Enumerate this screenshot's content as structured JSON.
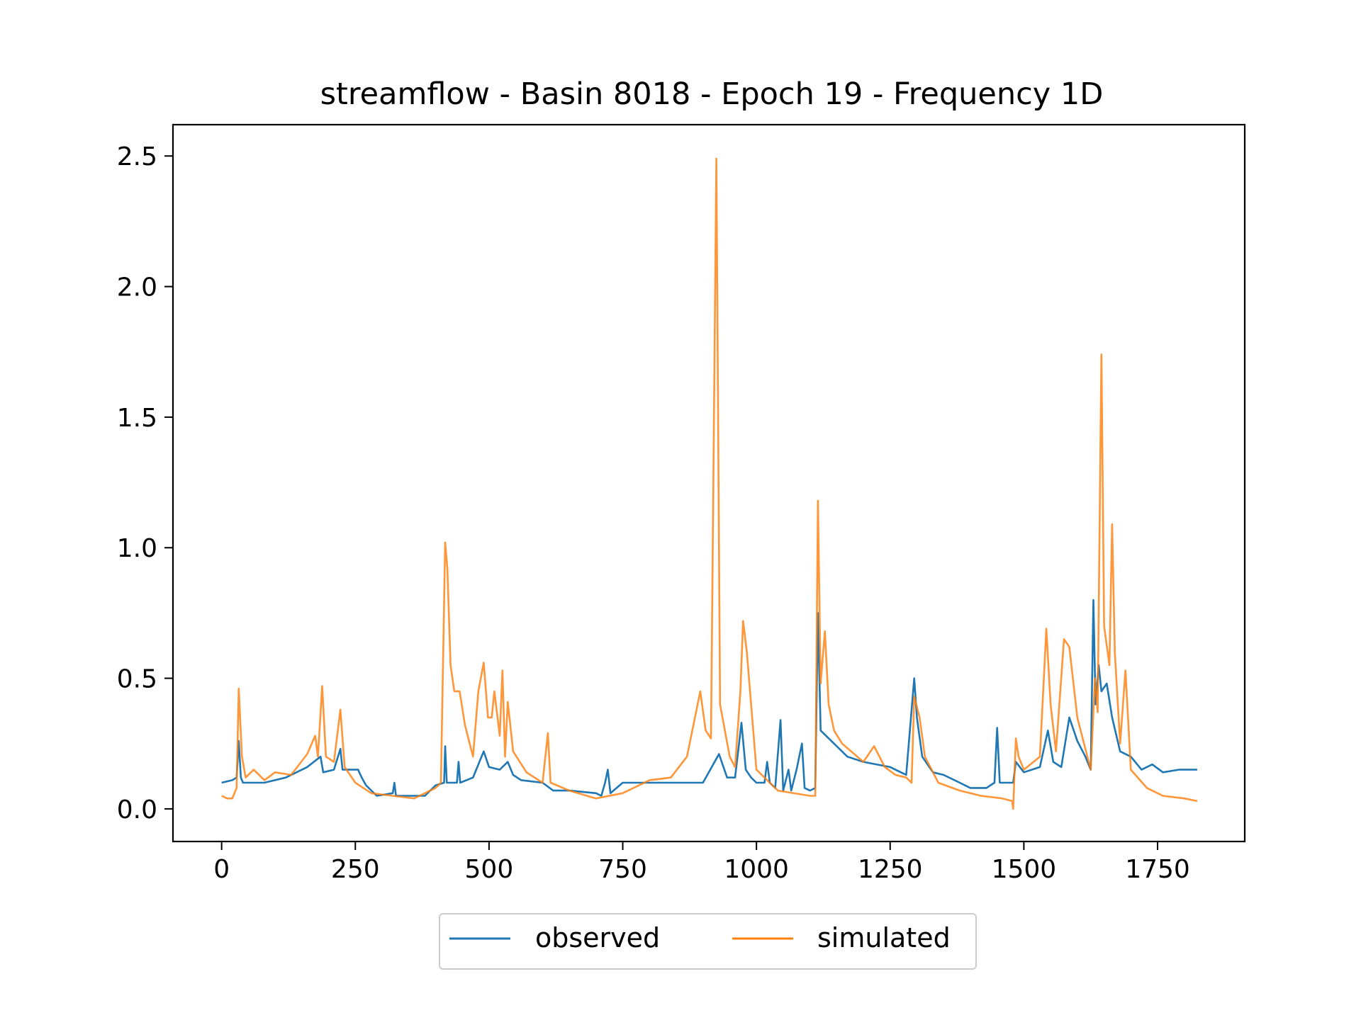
{
  "chart_data": {
    "type": "line",
    "title": "streamflow - Basin 8018 - Epoch 19 - Frequency 1D",
    "xlabel": "",
    "ylabel": "",
    "xlim": [
      -91,
      1913
    ],
    "ylim": [
      -0.125,
      2.62
    ],
    "x_ticks": [
      0,
      250,
      500,
      750,
      1000,
      1250,
      1500,
      1750
    ],
    "x_tick_labels": [
      "0",
      "250",
      "500",
      "750",
      "1000",
      "1250",
      "1500",
      "1750"
    ],
    "y_ticks": [
      0.0,
      0.5,
      1.0,
      1.5,
      2.0,
      2.5
    ],
    "y_tick_labels": [
      "0.0",
      "0.5",
      "1.0",
      "1.5",
      "2.0",
      "2.5"
    ],
    "grid": false,
    "legend_position": "bottom-center-outside",
    "series": [
      {
        "name": "observed",
        "color": "#1f77b4",
        "points": [
          [
            0,
            0.1
          ],
          [
            20,
            0.11
          ],
          [
            28,
            0.12
          ],
          [
            32,
            0.26
          ],
          [
            36,
            0.12
          ],
          [
            40,
            0.1
          ],
          [
            80,
            0.1
          ],
          [
            120,
            0.12
          ],
          [
            160,
            0.16
          ],
          [
            185,
            0.2
          ],
          [
            190,
            0.14
          ],
          [
            210,
            0.15
          ],
          [
            222,
            0.23
          ],
          [
            226,
            0.15
          ],
          [
            255,
            0.15
          ],
          [
            262,
            0.12
          ],
          [
            270,
            0.09
          ],
          [
            290,
            0.05
          ],
          [
            320,
            0.06
          ],
          [
            323,
            0.1
          ],
          [
            326,
            0.05
          ],
          [
            380,
            0.05
          ],
          [
            400,
            0.09
          ],
          [
            416,
            0.1
          ],
          [
            418,
            0.24
          ],
          [
            421,
            0.1
          ],
          [
            440,
            0.1
          ],
          [
            443,
            0.18
          ],
          [
            446,
            0.1
          ],
          [
            470,
            0.12
          ],
          [
            490,
            0.22
          ],
          [
            500,
            0.16
          ],
          [
            520,
            0.15
          ],
          [
            535,
            0.18
          ],
          [
            545,
            0.13
          ],
          [
            560,
            0.11
          ],
          [
            600,
            0.1
          ],
          [
            620,
            0.07
          ],
          [
            650,
            0.07
          ],
          [
            700,
            0.06
          ],
          [
            710,
            0.05
          ],
          [
            717,
            0.1
          ],
          [
            722,
            0.15
          ],
          [
            727,
            0.06
          ],
          [
            750,
            0.1
          ],
          [
            800,
            0.1
          ],
          [
            850,
            0.1
          ],
          [
            900,
            0.1
          ],
          [
            930,
            0.21
          ],
          [
            945,
            0.12
          ],
          [
            960,
            0.12
          ],
          [
            972,
            0.33
          ],
          [
            980,
            0.15
          ],
          [
            990,
            0.12
          ],
          [
            1000,
            0.1
          ],
          [
            1015,
            0.1
          ],
          [
            1020,
            0.18
          ],
          [
            1025,
            0.1
          ],
          [
            1035,
            0.08
          ],
          [
            1045,
            0.34
          ],
          [
            1050,
            0.07
          ],
          [
            1060,
            0.15
          ],
          [
            1065,
            0.07
          ],
          [
            1075,
            0.15
          ],
          [
            1085,
            0.25
          ],
          [
            1090,
            0.08
          ],
          [
            1100,
            0.07
          ],
          [
            1110,
            0.08
          ],
          [
            1115,
            0.75
          ],
          [
            1120,
            0.3
          ],
          [
            1140,
            0.26
          ],
          [
            1170,
            0.2
          ],
          [
            1200,
            0.18
          ],
          [
            1250,
            0.16
          ],
          [
            1280,
            0.13
          ],
          [
            1295,
            0.5
          ],
          [
            1300,
            0.35
          ],
          [
            1310,
            0.2
          ],
          [
            1330,
            0.14
          ],
          [
            1350,
            0.13
          ],
          [
            1380,
            0.1
          ],
          [
            1400,
            0.08
          ],
          [
            1430,
            0.08
          ],
          [
            1445,
            0.1
          ],
          [
            1450,
            0.31
          ],
          [
            1455,
            0.1
          ],
          [
            1480,
            0.1
          ],
          [
            1485,
            0.18
          ],
          [
            1500,
            0.14
          ],
          [
            1530,
            0.16
          ],
          [
            1545,
            0.3
          ],
          [
            1555,
            0.18
          ],
          [
            1570,
            0.16
          ],
          [
            1585,
            0.35
          ],
          [
            1600,
            0.26
          ],
          [
            1615,
            0.2
          ],
          [
            1625,
            0.15
          ],
          [
            1630,
            0.8
          ],
          [
            1634,
            0.4
          ],
          [
            1640,
            0.55
          ],
          [
            1645,
            0.45
          ],
          [
            1655,
            0.48
          ],
          [
            1665,
            0.35
          ],
          [
            1680,
            0.22
          ],
          [
            1700,
            0.2
          ],
          [
            1720,
            0.15
          ],
          [
            1740,
            0.17
          ],
          [
            1760,
            0.14
          ],
          [
            1790,
            0.15
          ],
          [
            1824,
            0.15
          ]
        ]
      },
      {
        "name": "simulated",
        "color": "#ff7f0e",
        "points": [
          [
            0,
            0.05
          ],
          [
            10,
            0.04
          ],
          [
            20,
            0.04
          ],
          [
            28,
            0.08
          ],
          [
            32,
            0.46
          ],
          [
            38,
            0.2
          ],
          [
            45,
            0.12
          ],
          [
            60,
            0.15
          ],
          [
            80,
            0.11
          ],
          [
            100,
            0.14
          ],
          [
            130,
            0.13
          ],
          [
            160,
            0.21
          ],
          [
            175,
            0.28
          ],
          [
            180,
            0.2
          ],
          [
            188,
            0.47
          ],
          [
            195,
            0.2
          ],
          [
            210,
            0.18
          ],
          [
            222,
            0.38
          ],
          [
            230,
            0.16
          ],
          [
            250,
            0.1
          ],
          [
            280,
            0.06
          ],
          [
            320,
            0.05
          ],
          [
            360,
            0.04
          ],
          [
            400,
            0.08
          ],
          [
            410,
            0.1
          ],
          [
            418,
            1.02
          ],
          [
            422,
            0.92
          ],
          [
            428,
            0.55
          ],
          [
            435,
            0.45
          ],
          [
            445,
            0.45
          ],
          [
            455,
            0.32
          ],
          [
            470,
            0.2
          ],
          [
            480,
            0.45
          ],
          [
            490,
            0.56
          ],
          [
            498,
            0.35
          ],
          [
            505,
            0.35
          ],
          [
            510,
            0.45
          ],
          [
            520,
            0.28
          ],
          [
            525,
            0.53
          ],
          [
            530,
            0.2
          ],
          [
            535,
            0.41
          ],
          [
            545,
            0.22
          ],
          [
            570,
            0.14
          ],
          [
            600,
            0.1
          ],
          [
            610,
            0.29
          ],
          [
            615,
            0.1
          ],
          [
            650,
            0.07
          ],
          [
            700,
            0.04
          ],
          [
            750,
            0.06
          ],
          [
            800,
            0.11
          ],
          [
            840,
            0.12
          ],
          [
            870,
            0.2
          ],
          [
            885,
            0.35
          ],
          [
            895,
            0.45
          ],
          [
            905,
            0.3
          ],
          [
            915,
            0.27
          ],
          [
            925,
            2.49
          ],
          [
            932,
            0.4
          ],
          [
            950,
            0.2
          ],
          [
            960,
            0.16
          ],
          [
            970,
            0.45
          ],
          [
            975,
            0.72
          ],
          [
            982,
            0.6
          ],
          [
            990,
            0.4
          ],
          [
            1000,
            0.15
          ],
          [
            1040,
            0.07
          ],
          [
            1100,
            0.05
          ],
          [
            1110,
            0.05
          ],
          [
            1115,
            1.18
          ],
          [
            1120,
            0.48
          ],
          [
            1128,
            0.68
          ],
          [
            1135,
            0.4
          ],
          [
            1145,
            0.3
          ],
          [
            1160,
            0.25
          ],
          [
            1200,
            0.18
          ],
          [
            1220,
            0.24
          ],
          [
            1240,
            0.16
          ],
          [
            1260,
            0.13
          ],
          [
            1280,
            0.12
          ],
          [
            1290,
            0.1
          ],
          [
            1295,
            0.43
          ],
          [
            1305,
            0.35
          ],
          [
            1315,
            0.2
          ],
          [
            1340,
            0.1
          ],
          [
            1380,
            0.07
          ],
          [
            1420,
            0.05
          ],
          [
            1460,
            0.04
          ],
          [
            1478,
            0.03
          ],
          [
            1480,
            0.0
          ],
          [
            1485,
            0.27
          ],
          [
            1490,
            0.2
          ],
          [
            1500,
            0.15
          ],
          [
            1530,
            0.2
          ],
          [
            1542,
            0.69
          ],
          [
            1550,
            0.4
          ],
          [
            1560,
            0.22
          ],
          [
            1575,
            0.65
          ],
          [
            1585,
            0.62
          ],
          [
            1600,
            0.35
          ],
          [
            1625,
            0.15
          ],
          [
            1633,
            0.5
          ],
          [
            1638,
            0.37
          ],
          [
            1645,
            1.74
          ],
          [
            1650,
            0.7
          ],
          [
            1660,
            0.55
          ],
          [
            1665,
            1.09
          ],
          [
            1670,
            0.6
          ],
          [
            1680,
            0.25
          ],
          [
            1690,
            0.53
          ],
          [
            1700,
            0.15
          ],
          [
            1730,
            0.08
          ],
          [
            1760,
            0.05
          ],
          [
            1800,
            0.04
          ],
          [
            1824,
            0.03
          ]
        ]
      }
    ]
  }
}
